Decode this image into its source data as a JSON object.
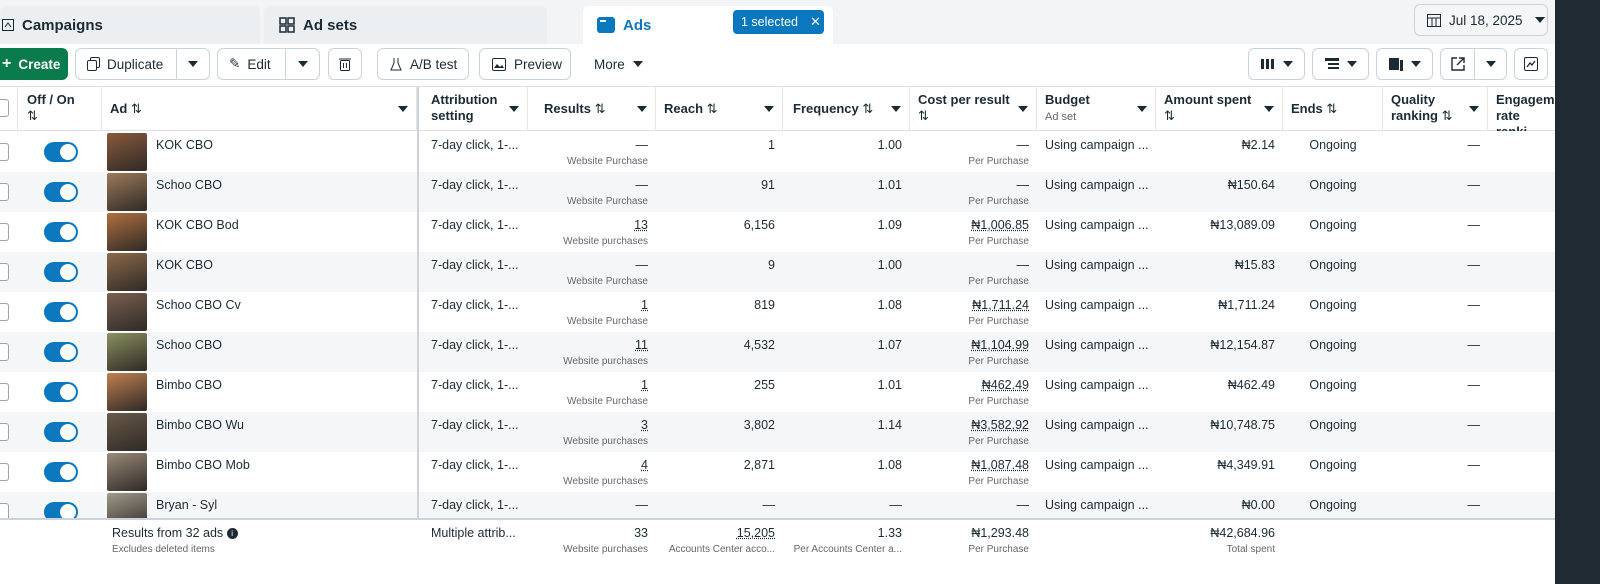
{
  "tabs": {
    "campaigns": "Campaigns",
    "adsets": "Ad sets",
    "ads": "Ads",
    "selected": "1 selected"
  },
  "date": "Jul 18, 2025",
  "toolbar": {
    "create": "Create",
    "duplicate": "Duplicate",
    "edit": "Edit",
    "abtest": "A/B test",
    "preview": "Preview",
    "more": "More"
  },
  "columns": {
    "offon": "Off / On",
    "ad": "Ad",
    "attribution": "Attribution setting",
    "results": "Results",
    "reach": "Reach",
    "frequency": "Frequency",
    "cpr": "Cost per result",
    "budget": "Budget",
    "budget_sub": "Ad set",
    "spent": "Amount spent",
    "ends": "Ends",
    "quality": "Quality ranking",
    "engagement": "Engagement rate ranki..."
  },
  "rows": [
    {
      "name": "KOK CBO",
      "attr": "7-day click, 1-...",
      "results": "—",
      "results_sub": "Website Purchase",
      "reach": "1",
      "freq": "1.00",
      "cpr": "—",
      "cpr_sub": "Per Purchase",
      "budget": "Using campaign ...",
      "spent": "₦2.14",
      "ends": "Ongoing",
      "quality": "—"
    },
    {
      "name": "Schoo CBO",
      "attr": "7-day click, 1-...",
      "results": "—",
      "results_sub": "Website Purchase",
      "reach": "91",
      "freq": "1.01",
      "cpr": "—",
      "cpr_sub": "Per Purchase",
      "budget": "Using campaign ...",
      "spent": "₦150.64",
      "ends": "Ongoing",
      "quality": "—"
    },
    {
      "name": "KOK CBO Bod",
      "attr": "7-day click, 1-...",
      "results": "13",
      "results_sub": "Website purchases",
      "reach": "6,156",
      "freq": "1.09",
      "cpr": "₦1,006.85",
      "cpr_sub": "Per Purchase",
      "budget": "Using campaign ...",
      "spent": "₦13,089.09",
      "ends": "Ongoing",
      "quality": "—"
    },
    {
      "name": "KOK CBO",
      "attr": "7-day click, 1-...",
      "results": "—",
      "results_sub": "Website Purchase",
      "reach": "9",
      "freq": "1.00",
      "cpr": "—",
      "cpr_sub": "Per Purchase",
      "budget": "Using campaign ...",
      "spent": "₦15.83",
      "ends": "Ongoing",
      "quality": "—"
    },
    {
      "name": "Schoo CBO Cv",
      "attr": "7-day click, 1-...",
      "results": "1",
      "results_sub": "Website Purchase",
      "reach": "819",
      "freq": "1.08",
      "cpr": "₦1,711.24",
      "cpr_sub": "Per Purchase",
      "budget": "Using campaign ...",
      "spent": "₦1,711.24",
      "ends": "Ongoing",
      "quality": "—"
    },
    {
      "name": "Schoo CBO",
      "attr": "7-day click, 1-...",
      "results": "11",
      "results_sub": "Website purchases",
      "reach": "4,532",
      "freq": "1.07",
      "cpr": "₦1,104.99",
      "cpr_sub": "Per Purchase",
      "budget": "Using campaign ...",
      "spent": "₦12,154.87",
      "ends": "Ongoing",
      "quality": "—"
    },
    {
      "name": "Bimbo CBO",
      "attr": "7-day click, 1-...",
      "results": "1",
      "results_sub": "Website Purchase",
      "reach": "255",
      "freq": "1.01",
      "cpr": "₦462.49",
      "cpr_sub": "Per Purchase",
      "budget": "Using campaign ...",
      "spent": "₦462.49",
      "ends": "Ongoing",
      "quality": "—"
    },
    {
      "name": "Bimbo CBO Wu",
      "attr": "7-day click, 1-...",
      "results": "3",
      "results_sub": "Website purchases",
      "reach": "3,802",
      "freq": "1.14",
      "cpr": "₦3,582.92",
      "cpr_sub": "Per Purchase",
      "budget": "Using campaign ...",
      "spent": "₦10,748.75",
      "ends": "Ongoing",
      "quality": "—"
    },
    {
      "name": "Bimbo CBO Mob",
      "attr": "7-day click, 1-...",
      "results": "4",
      "results_sub": "Website purchases",
      "reach": "2,871",
      "freq": "1.08",
      "cpr": "₦1,087.48",
      "cpr_sub": "Per Purchase",
      "budget": "Using campaign ...",
      "spent": "₦4,349.91",
      "ends": "Ongoing",
      "quality": "—"
    },
    {
      "name": "Bryan - Syl",
      "attr": "7-day click, 1-...",
      "results": "—",
      "results_sub": "",
      "reach": "—",
      "freq": "—",
      "cpr": "—",
      "cpr_sub": "",
      "budget": "Using campaign ...",
      "spent": "₦0.00",
      "ends": "Ongoing",
      "quality": "—"
    }
  ],
  "footer": {
    "label": "Results from 32 ads",
    "sub": "Excludes deleted items",
    "attr": "Multiple attrib...",
    "results": "33",
    "results_sub": "Website purchases",
    "reach": "15,205",
    "reach_sub": "Accounts Center acco...",
    "freq": "1.33",
    "freq_sub": "Per Accounts Center a...",
    "cpr": "₦1,293.48",
    "cpr_sub": "Per Purchase",
    "spent": "₦42,684.96",
    "spent_sub": "Total spent"
  },
  "colors": {
    "accent": "#0a78be",
    "create": "#0a7b4c"
  }
}
